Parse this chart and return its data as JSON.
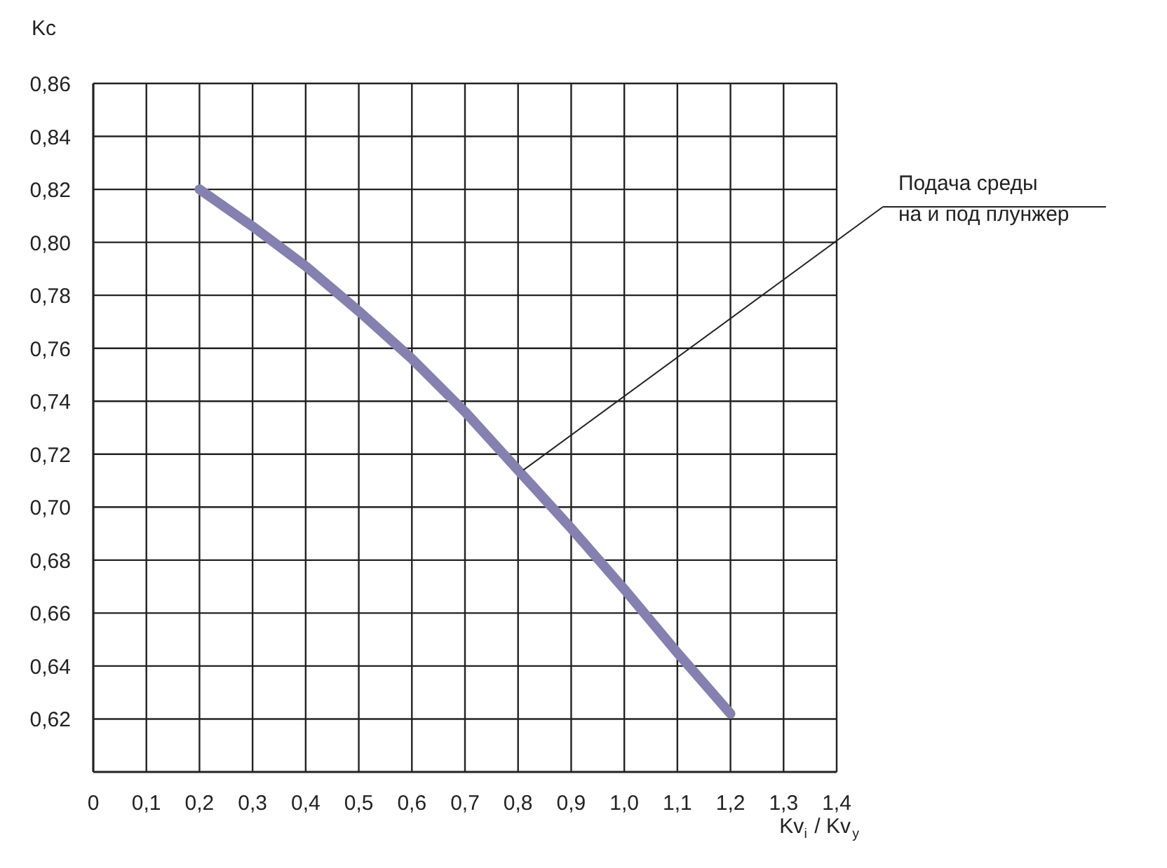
{
  "chart_data": {
    "type": "line",
    "xlabel": "Kv$_{i}$ / Kv$_{y}$",
    "ylabel": "Kc",
    "x": [
      0.2,
      0.3,
      0.4,
      0.5,
      0.6,
      0.7,
      0.8,
      0.9,
      1.0,
      1.1,
      1.2
    ],
    "series": [
      {
        "color": "#8480b0",
        "values": [
          0.82,
          0.806,
          0.791,
          0.774,
          0.756,
          0.736,
          0.714,
          0.692,
          0.669,
          0.645,
          0.622
        ]
      }
    ],
    "xlim": [
      0,
      1.4
    ],
    "xticks": [
      0,
      {
        "value": 0.1,
        "label": "0,1"
      },
      {
        "value": 0.2,
        "label": "0,2"
      },
      {
        "value": 0.3,
        "label": "0,3"
      },
      {
        "value": 0.4,
        "label": "0,4"
      },
      {
        "value": 0.5,
        "label": "0,5"
      },
      {
        "value": 0.6,
        "label": "0,6"
      },
      {
        "value": 0.7,
        "label": "0,7"
      },
      {
        "value": 0.8,
        "label": "0,8"
      },
      {
        "value": 0.9,
        "label": "0,9"
      },
      {
        "value": 1.0,
        "label": "1,0"
      },
      {
        "value": 1.1,
        "label": "1,1"
      },
      {
        "value": 1.2,
        "label": "1,2"
      },
      {
        "value": 1.3,
        "label": "1,3"
      },
      {
        "value": 1.4,
        "label": "1,4"
      }
    ],
    "ylim": [
      0.6,
      0.86
    ],
    "yticks": [
      {
        "value": 0.62,
        "label": "0,62"
      },
      {
        "value": 0.64,
        "label": "0,64"
      },
      {
        "value": 0.66,
        "label": "0,66"
      },
      {
        "value": 0.68,
        "label": "0,68"
      },
      {
        "value": 0.7,
        "label": "0,70"
      },
      {
        "value": 0.72,
        "label": "0,72"
      },
      {
        "value": 0.74,
        "label": "0,74"
      },
      {
        "value": 0.76,
        "label": "0,76"
      },
      {
        "value": 0.78,
        "label": "0,78"
      },
      {
        "value": 0.8,
        "label": "0,80"
      },
      {
        "value": 0.82,
        "label": "0,82"
      },
      {
        "value": 0.84,
        "label": "0,84"
      },
      {
        "value": 0.86,
        "label": "0,86"
      }
    ],
    "grid": true,
    "marker": "none",
    "line_style": "solid",
    "annotations": [
      {
        "text": "Подача среды\nна и под плунжер",
        "x": 0.81,
        "y": 0.714
      }
    ]
  }
}
